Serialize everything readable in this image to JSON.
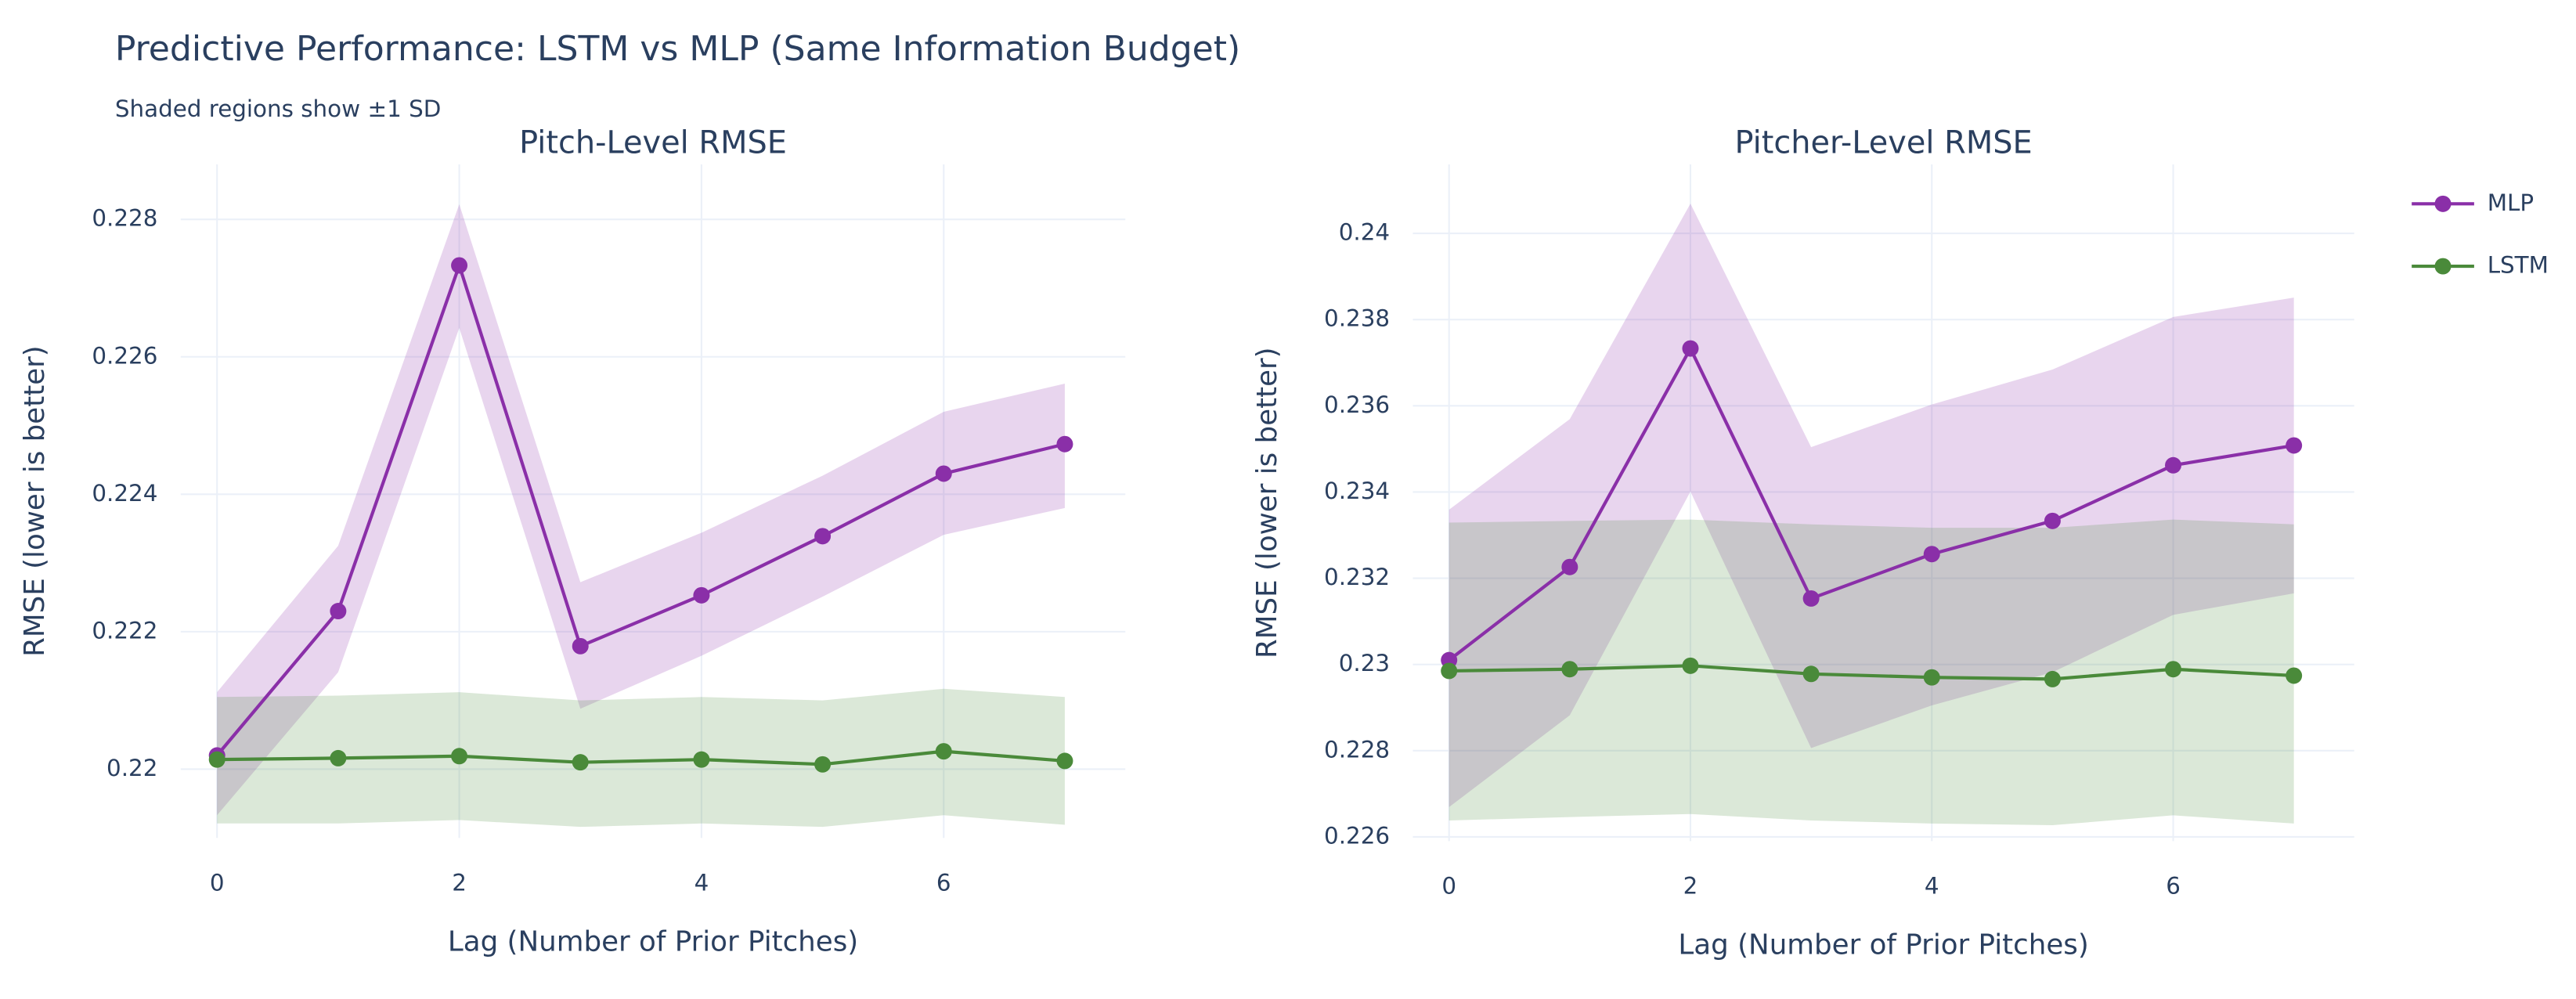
{
  "title": "Predictive Performance: LSTM vs MLP (Same Information Budget)",
  "subtitle": "Shaded regions show ±1 SD",
  "chart_data": [
    {
      "type": "line",
      "title": "Pitch-Level RMSE",
      "xlabel": "Lag (Number of Prior Pitches)",
      "ylabel": "RMSE (lower is better)",
      "x": [
        0,
        1,
        2,
        3,
        4,
        5,
        6,
        7
      ],
      "xlim": [
        -0.3,
        7.5
      ],
      "xticks": [
        0,
        2,
        4,
        6
      ],
      "ylim": [
        0.219,
        0.2288
      ],
      "yticks": [
        0.22,
        0.222,
        0.224,
        0.226,
        0.228
      ],
      "grid": true,
      "series": [
        {
          "name": "MLP",
          "color": "#8a2fa8",
          "values": [
            0.2202,
            0.2223,
            0.22733,
            0.22179,
            0.22253,
            0.22339,
            0.2243,
            0.22473
          ],
          "upper": [
            0.22112,
            0.22325,
            0.22822,
            0.22272,
            0.22344,
            0.22427,
            0.2252,
            0.22561
          ],
          "lower": [
            0.21933,
            0.22141,
            0.22642,
            0.22088,
            0.22165,
            0.22251,
            0.22341,
            0.2238
          ]
        },
        {
          "name": "LSTM",
          "color": "#4a8a3a",
          "values": [
            0.22014,
            0.22016,
            0.22019,
            0.2201,
            0.22014,
            0.22007,
            0.22026,
            0.22012
          ],
          "upper": [
            0.22105,
            0.22107,
            0.22112,
            0.221,
            0.22105,
            0.221,
            0.22117,
            0.22105
          ],
          "lower": [
            0.21921,
            0.21921,
            0.21926,
            0.21916,
            0.21921,
            0.21916,
            0.21933,
            0.21919
          ]
        }
      ]
    },
    {
      "type": "line",
      "title": "Pitcher-Level RMSE",
      "xlabel": "Lag (Number of Prior Pitches)",
      "ylabel": "RMSE (lower is better)",
      "x": [
        0,
        1,
        2,
        3,
        4,
        5,
        6,
        7
      ],
      "xlim": [
        -0.3,
        7.5
      ],
      "xticks": [
        0,
        2,
        4,
        6
      ],
      "ylim": [
        0.2259,
        0.2416
      ],
      "yticks": [
        0.226,
        0.228,
        0.23,
        0.232,
        0.234,
        0.236,
        0.238,
        0.24
      ],
      "grid": true,
      "series": [
        {
          "name": "MLP",
          "color": "#8a2fa8",
          "values": [
            0.2301,
            0.23226,
            0.23733,
            0.23153,
            0.23256,
            0.23333,
            0.23462,
            0.23508
          ],
          "upper": [
            0.23359,
            0.23569,
            0.24069,
            0.23504,
            0.23603,
            0.23684,
            0.23806,
            0.23851
          ],
          "lower": [
            0.22669,
            0.22882,
            0.23401,
            0.22806,
            0.22905,
            0.22982,
            0.23115,
            0.23165
          ]
        },
        {
          "name": "LSTM",
          "color": "#4a8a3a",
          "values": [
            0.22985,
            0.22989,
            0.22997,
            0.22978,
            0.2297,
            0.22966,
            0.22989,
            0.22974
          ],
          "upper": [
            0.23329,
            0.23333,
            0.23336,
            0.23325,
            0.23317,
            0.23317,
            0.23336,
            0.23325
          ],
          "lower": [
            0.22638,
            0.22646,
            0.22653,
            0.22638,
            0.22631,
            0.22627,
            0.2265,
            0.22631
          ]
        }
      ]
    }
  ]
}
